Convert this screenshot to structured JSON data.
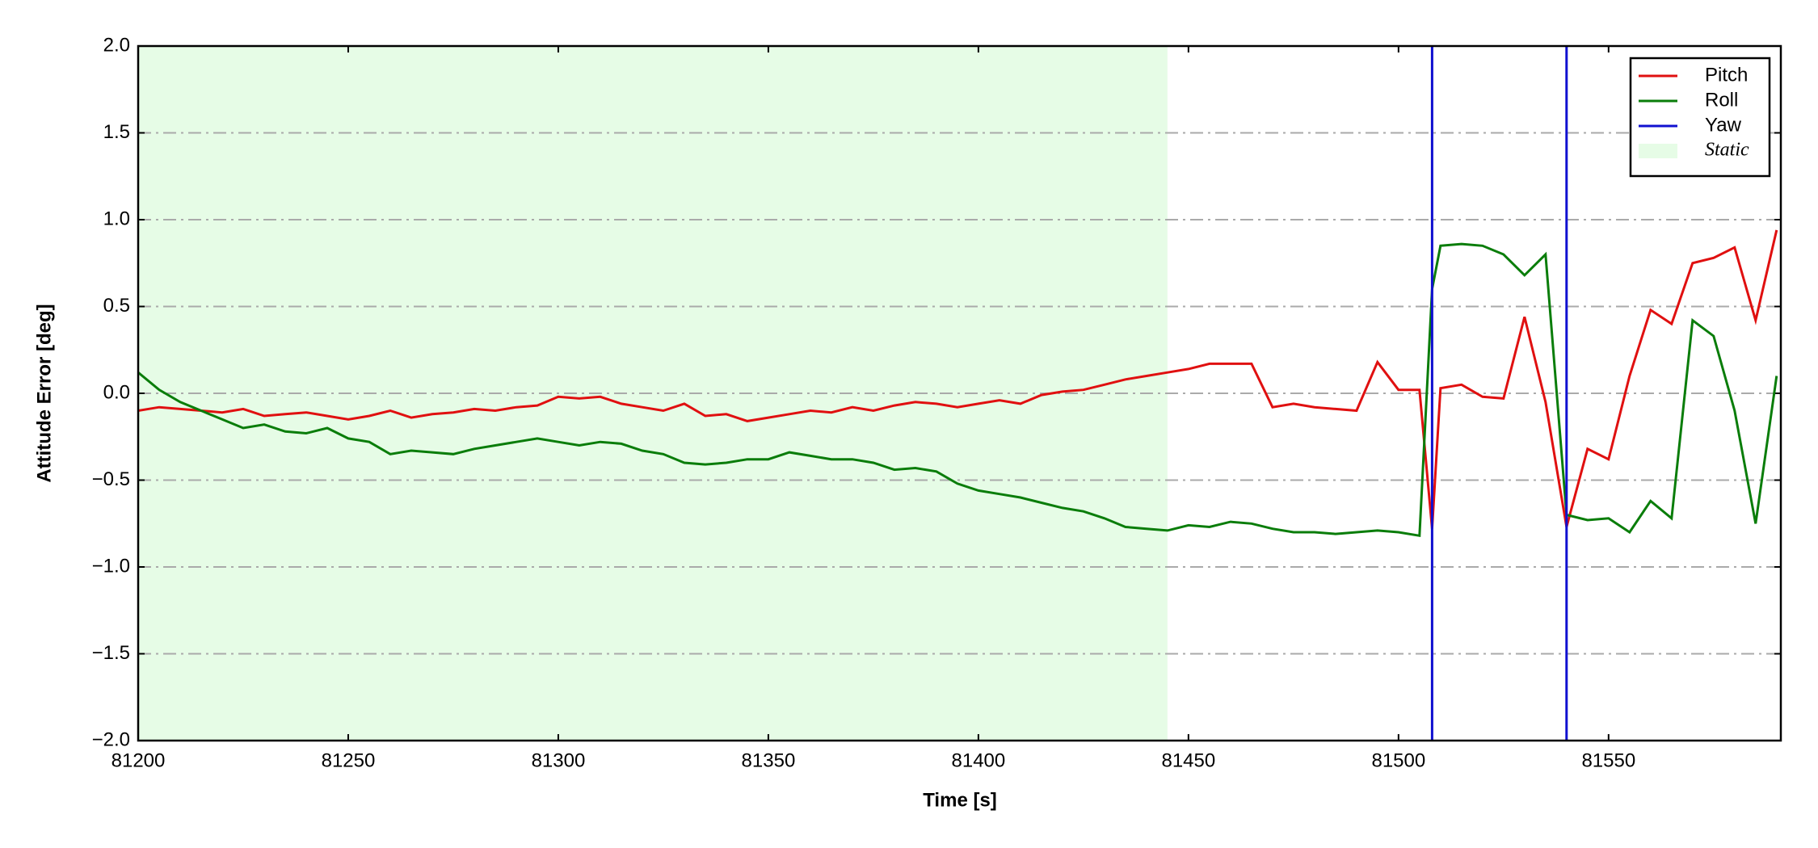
{
  "chart_data": {
    "type": "line",
    "xlabel": "Time [s]",
    "ylabel": "Attitude Error [deg]",
    "xlim": [
      81200,
      81591
    ],
    "ylim": [
      -2,
      2
    ],
    "xticks": [
      81200,
      81250,
      81300,
      81350,
      81400,
      81450,
      81500,
      81550
    ],
    "yticks": [
      {
        "value": -2,
        "label": "−2.0"
      },
      {
        "value": -1.5,
        "label": "−1.5"
      },
      {
        "value": -1,
        "label": "−1.0"
      },
      {
        "value": -0.5,
        "label": "−0.5"
      },
      {
        "value": 0,
        "label": "0.0"
      },
      {
        "value": 0.5,
        "label": "0.5"
      },
      {
        "value": 1,
        "label": "1.0"
      },
      {
        "value": 1.5,
        "label": "1.5"
      },
      {
        "value": 2,
        "label": "2.0"
      }
    ],
    "grid": true,
    "legend": "upper right",
    "shaded": {
      "name": "Static",
      "color": "#e6fce6",
      "x": [
        81200,
        81445
      ]
    },
    "x": [
      81200,
      81205,
      81210,
      81215,
      81220,
      81225,
      81230,
      81235,
      81240,
      81245,
      81250,
      81255,
      81260,
      81265,
      81270,
      81275,
      81280,
      81285,
      81290,
      81295,
      81300,
      81305,
      81310,
      81315,
      81320,
      81325,
      81330,
      81335,
      81340,
      81345,
      81350,
      81355,
      81360,
      81365,
      81370,
      81375,
      81380,
      81385,
      81390,
      81395,
      81400,
      81405,
      81410,
      81415,
      81420,
      81425,
      81430,
      81435,
      81440,
      81445,
      81450,
      81455,
      81460,
      81465,
      81470,
      81475,
      81480,
      81485,
      81490,
      81495,
      81500,
      81505,
      81508,
      81510,
      81515,
      81520,
      81525,
      81530,
      81535,
      81540,
      81545,
      81550,
      81555,
      81560,
      81565,
      81570,
      81575,
      81580,
      81585,
      81590
    ],
    "series": [
      {
        "name": "Pitch",
        "color": "#e01010",
        "values": [
          -0.1,
          -0.08,
          -0.09,
          -0.1,
          -0.11,
          -0.09,
          -0.13,
          -0.12,
          -0.11,
          -0.13,
          -0.15,
          -0.13,
          -0.1,
          -0.14,
          -0.12,
          -0.11,
          -0.09,
          -0.1,
          -0.08,
          -0.07,
          -0.02,
          -0.03,
          -0.02,
          -0.06,
          -0.08,
          -0.1,
          -0.06,
          -0.13,
          -0.12,
          -0.16,
          -0.14,
          -0.12,
          -0.1,
          -0.11,
          -0.08,
          -0.1,
          -0.07,
          -0.05,
          -0.06,
          -0.08,
          -0.06,
          -0.04,
          -0.06,
          -0.01,
          0.01,
          0.02,
          0.05,
          0.08,
          0.1,
          0.12,
          0.14,
          0.17,
          0.17,
          0.17,
          -0.08,
          -0.06,
          -0.08,
          -0.09,
          -0.1,
          0.18,
          0.02,
          0.02,
          -0.78,
          0.03,
          0.05,
          -0.02,
          -0.03,
          0.44,
          -0.05,
          -0.77,
          -0.32,
          -0.38,
          0.1,
          0.48,
          0.4,
          0.75,
          0.78,
          0.84,
          0.42,
          0.94
        ]
      },
      {
        "name": "Roll",
        "color": "#0a7d0a",
        "values": [
          0.12,
          0.02,
          -0.05,
          -0.1,
          -0.15,
          -0.2,
          -0.18,
          -0.22,
          -0.23,
          -0.2,
          -0.26,
          -0.28,
          -0.35,
          -0.33,
          -0.34,
          -0.35,
          -0.32,
          -0.3,
          -0.28,
          -0.26,
          -0.28,
          -0.3,
          -0.28,
          -0.29,
          -0.33,
          -0.35,
          -0.4,
          -0.41,
          -0.4,
          -0.38,
          -0.38,
          -0.34,
          -0.36,
          -0.38,
          -0.38,
          -0.4,
          -0.44,
          -0.43,
          -0.45,
          -0.52,
          -0.56,
          -0.58,
          -0.6,
          -0.63,
          -0.66,
          -0.68,
          -0.72,
          -0.77,
          -0.78,
          -0.79,
          -0.76,
          -0.77,
          -0.74,
          -0.75,
          -0.78,
          -0.8,
          -0.8,
          -0.81,
          -0.8,
          -0.79,
          -0.8,
          -0.82,
          0.6,
          0.85,
          0.86,
          0.85,
          0.8,
          0.68,
          0.8,
          -0.7,
          -0.73,
          -0.72,
          -0.8,
          -0.62,
          -0.72,
          0.42,
          0.33,
          -0.1,
          -0.75,
          0.1
        ]
      },
      {
        "name": "Yaw",
        "color": "#1010d0",
        "x": [
          81508,
          81508,
          81524,
          81540,
          81540
        ],
        "values": [
          -2,
          2,
          null,
          2,
          -2
        ]
      }
    ]
  }
}
